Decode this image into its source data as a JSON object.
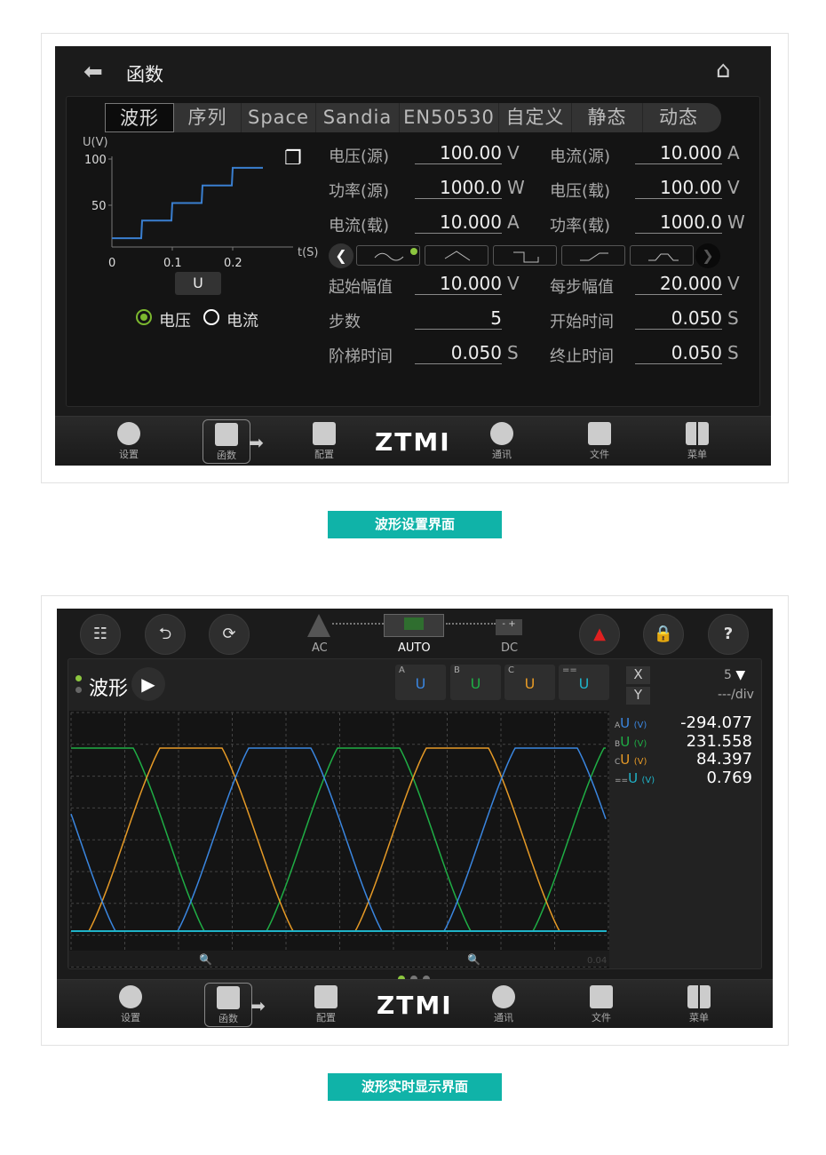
{
  "panel1": {
    "title": "函数",
    "tabs": [
      "波形",
      "序列",
      "Space",
      "Sandia",
      "EN50530",
      "自定义",
      "静态",
      "动态"
    ],
    "chart": {
      "ylabel": "U(V)",
      "xlabel": "t(S)",
      "yticks": [
        "100",
        "50"
      ],
      "xticks": [
        "0",
        "0.1",
        "0.2"
      ],
      "line_color": "#3a7fd0",
      "steps_t": [
        0,
        0.05,
        0.1,
        0.15,
        0.2,
        0.25
      ],
      "steps_v": [
        10,
        30,
        50,
        70,
        90
      ]
    },
    "u_button": "U",
    "radio": {
      "voltage": "电压",
      "current": "电流",
      "selected": "voltage"
    },
    "fields": [
      {
        "label": "电压(源)",
        "value": "100.00",
        "unit": "V"
      },
      {
        "label": "电流(源)",
        "value": "10.000",
        "unit": "A"
      },
      {
        "label": "功率(源)",
        "value": "1000.0",
        "unit": "W"
      },
      {
        "label": "电压(载)",
        "value": "100.00",
        "unit": "V"
      },
      {
        "label": "电流(载)",
        "value": "10.000",
        "unit": "A"
      },
      {
        "label": "功率(载)",
        "value": "1000.0",
        "unit": "W"
      },
      {
        "label": "起始幅值",
        "value": "10.000",
        "unit": "V"
      },
      {
        "label": "每步幅值",
        "value": "20.000",
        "unit": "V"
      },
      {
        "label": "步数",
        "value": "5",
        "unit": ""
      },
      {
        "label": "开始时间",
        "value": "0.050",
        "unit": "S"
      },
      {
        "label": "阶梯时间",
        "value": "0.050",
        "unit": "S"
      },
      {
        "label": "终止时间",
        "value": "0.050",
        "unit": "S"
      }
    ],
    "waveforms": [
      "sine",
      "triangle",
      "square",
      "ramp",
      "trapezoid"
    ],
    "waveform_selected": "sine"
  },
  "toolbar": {
    "items": [
      "设置",
      "函数",
      "配置",
      "通讯",
      "文件",
      "菜单"
    ],
    "logo": "ZTMI",
    "active": "函数"
  },
  "caption1": "波形设置界面",
  "panel2": {
    "modes": [
      "AC",
      "AUTO",
      "DC"
    ],
    "active_mode": "AUTO",
    "title": "波形",
    "channels": [
      {
        "tag": "A",
        "label": "U",
        "color": "#3a86e0"
      },
      {
        "tag": "B",
        "label": "U",
        "color": "#1fae45"
      },
      {
        "tag": "C",
        "label": "U",
        "color": "#e69a26"
      },
      {
        "tag": "==",
        "label": "U",
        "color": "#1fb3c8"
      }
    ],
    "x_button": "X",
    "y_button": "Y",
    "scale": "5",
    "per_div": "---/div",
    "readings": [
      {
        "tag": "A",
        "label": "U",
        "unit": "(V)",
        "value": "-294.077"
      },
      {
        "tag": "B",
        "label": "U",
        "unit": "(V)",
        "value": "231.558"
      },
      {
        "tag": "C",
        "label": "U",
        "unit": "(V)",
        "value": "84.397"
      },
      {
        "tag": "==",
        "label": "U",
        "unit": "(V)",
        "value": "0.769"
      }
    ],
    "time_label": "0.04"
  },
  "caption2": "波形实时显示界面"
}
